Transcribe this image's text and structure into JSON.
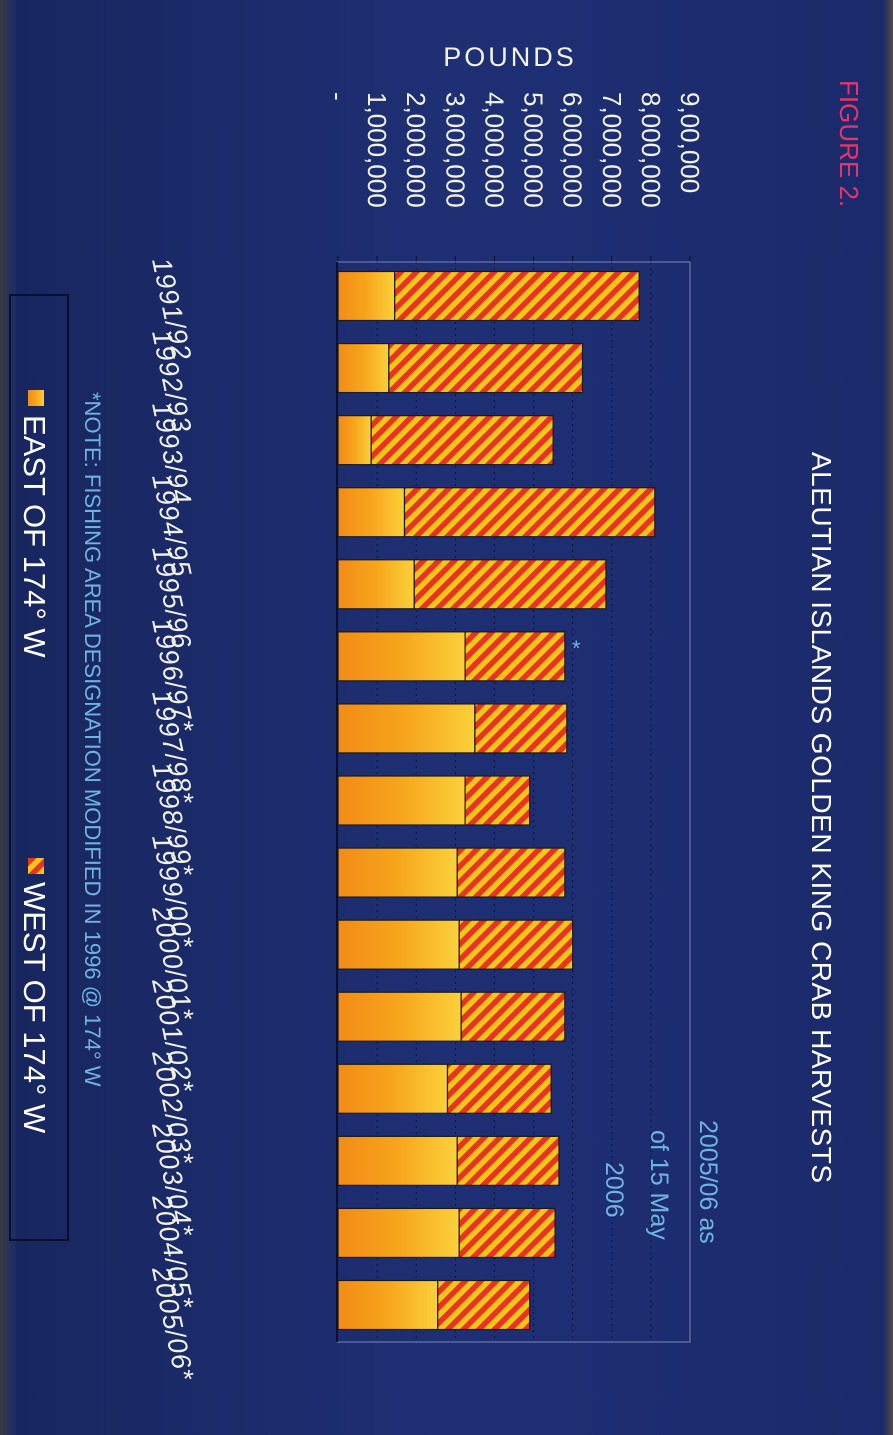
{
  "figure_label": "FIGURE 2.",
  "chart_data": {
    "type": "bar",
    "stacked": true,
    "orientation": "rotated-90-clockwise",
    "title": "ALEUTIAN ISLANDS GOLDEN KING CRAB HARVESTS",
    "ylabel": "POUNDS",
    "xlabel": "",
    "ylim": [
      0,
      9000000
    ],
    "y_ticks": [
      "-",
      "1,000,000",
      "2,000,000",
      "3,000,000",
      "4,000,000",
      "5,000,000",
      "6,000,000",
      "7,000,000",
      "8,000,000",
      "9,00,000"
    ],
    "grid": true,
    "categories": [
      "1991/92",
      "1992/93",
      "1993/94",
      "1994/95",
      "1995/96",
      "1996/97*",
      "1997/98*",
      "1998/99*",
      "1999/00*",
      "2000/01*",
      "2001/02*",
      "2002/03*",
      "2003/04*",
      "2004/05*",
      "2005/06*"
    ],
    "series": [
      {
        "name": "EAST OF 174° W",
        "color": "#f7a51c",
        "pattern": "solid gradient",
        "values": [
          1450000,
          1300000,
          850000,
          1700000,
          1950000,
          3250000,
          3500000,
          3250000,
          3050000,
          3100000,
          3150000,
          2800000,
          3050000,
          3100000,
          2550000
        ]
      },
      {
        "name": "WEST OF 174° W",
        "color": "#e8331e",
        "pattern": "red/yellow diagonal hatch",
        "values": [
          6250000,
          4950000,
          4650000,
          6400000,
          4900000,
          2550000,
          2350000,
          1650000,
          2750000,
          2900000,
          2650000,
          2650000,
          2600000,
          2450000,
          2350000
        ]
      }
    ],
    "legend": {
      "placement": "bottom",
      "items": [
        "EAST OF 174° W",
        "WEST OF 174° W"
      ]
    },
    "annotations": {
      "date_note_lines": [
        "2005/06 as",
        "of 15 May",
        "2006"
      ],
      "footnote": "*NOTE: FISHING AREA DESIGNATION MODIFIED IN 1996 @ 174° W",
      "bar_marker": "*"
    }
  },
  "colors": {
    "background": "#1b2a6b",
    "east_bar": "#f7a51c",
    "west_stripe_red": "#e8331e",
    "west_stripe_yellow": "#f5c518",
    "title_text": "#ffffff",
    "figure_label": "#e8336a",
    "note_text": "#6fb3e0"
  }
}
